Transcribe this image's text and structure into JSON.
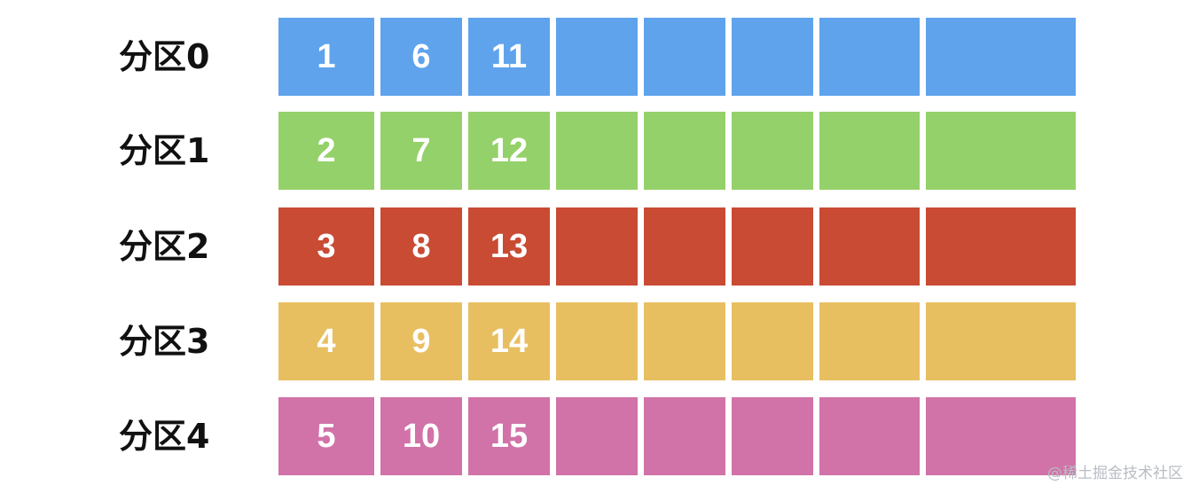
{
  "watermark": "@稀土掘金技术社区",
  "partitions": [
    {
      "label": "分区0",
      "color": "#5fa3ec",
      "values": [
        "1",
        "6",
        "11",
        "",
        "",
        "",
        "",
        ""
      ]
    },
    {
      "label": "分区1",
      "color": "#95d16a",
      "values": [
        "2",
        "7",
        "12",
        "",
        "",
        "",
        "",
        ""
      ]
    },
    {
      "label": "分区2",
      "color": "#c94b34",
      "values": [
        "3",
        "8",
        "13",
        "",
        "",
        "",
        "",
        ""
      ]
    },
    {
      "label": "分区3",
      "color": "#e8bf60",
      "values": [
        "4",
        "9",
        "14",
        "",
        "",
        "",
        "",
        ""
      ]
    },
    {
      "label": "分区4",
      "color": "#d172a8",
      "values": [
        "5",
        "10",
        "15",
        "",
        "",
        "",
        "",
        ""
      ]
    }
  ]
}
